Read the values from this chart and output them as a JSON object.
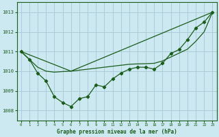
{
  "background_color": "#cce8f0",
  "line_color": "#1a5c1a",
  "grid_color": "#aaccd8",
  "title": "Graphe pression niveau de la mer (hPa)",
  "xlim": [
    -0.5,
    23.5
  ],
  "ylim": [
    1007.5,
    1013.5
  ],
  "yticks": [
    1008,
    1009,
    1010,
    1011,
    1012,
    1013
  ],
  "xticks": [
    0,
    1,
    2,
    3,
    4,
    5,
    6,
    7,
    8,
    9,
    10,
    11,
    12,
    13,
    14,
    15,
    16,
    17,
    18,
    19,
    20,
    21,
    22,
    23
  ],
  "series1_x": [
    0,
    1,
    2,
    3,
    4,
    5,
    6,
    7,
    8,
    9,
    10,
    11,
    12,
    13,
    14,
    15,
    16,
    17,
    18,
    19,
    20,
    21,
    22,
    23
  ],
  "series1_y": [
    1011.0,
    1010.6,
    1009.9,
    1009.5,
    1008.7,
    1008.4,
    1008.2,
    1008.6,
    1008.7,
    1009.3,
    1009.2,
    1009.6,
    1009.9,
    1010.1,
    1010.2,
    1010.2,
    1010.1,
    1010.4,
    1010.9,
    1011.1,
    1011.6,
    1012.2,
    1012.5,
    1013.0
  ],
  "series2_x": [
    0,
    6,
    23
  ],
  "series2_y": [
    1011.0,
    1010.0,
    1013.0
  ],
  "series3_x": [
    0,
    1,
    2,
    3,
    4,
    5,
    6,
    7,
    8,
    9,
    10,
    11,
    12,
    13,
    14,
    15,
    16,
    17,
    18,
    19,
    20,
    21,
    22,
    23
  ],
  "series3_y": [
    1011.0,
    1010.6,
    1010.2,
    1010.0,
    1009.95,
    1009.98,
    1010.0,
    1010.05,
    1010.1,
    1010.15,
    1010.2,
    1010.25,
    1010.3,
    1010.35,
    1010.37,
    1010.38,
    1010.4,
    1010.52,
    1010.72,
    1010.92,
    1011.12,
    1011.52,
    1012.0,
    1013.0
  ]
}
